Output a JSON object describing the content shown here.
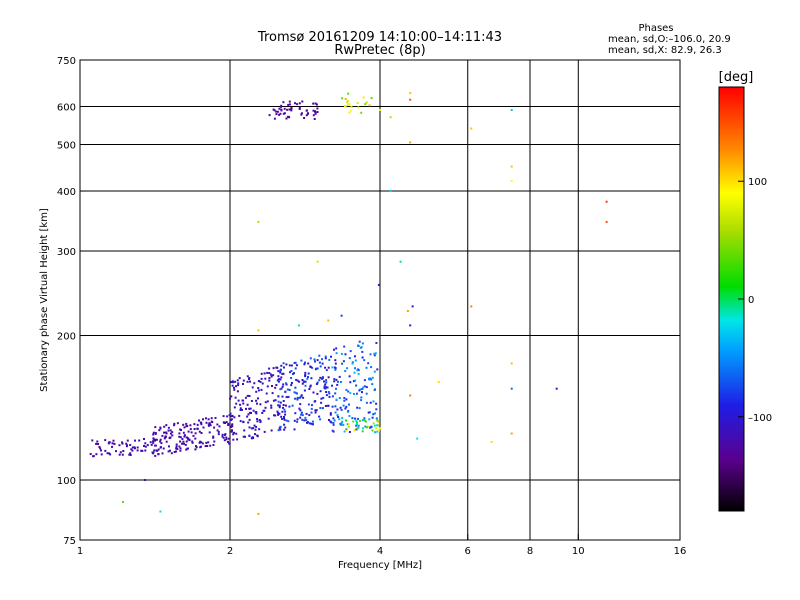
{
  "chart_data": {
    "type": "scatter",
    "title": "Tromsø 20161209 14:10:00–14:11:43",
    "subtitle": "RwPretec (8p)",
    "xlabel": "Frequency [MHz]",
    "ylabel": "Stationary phase Virtual Height [km]",
    "x_scale": "log",
    "y_scale": "log",
    "xlim": [
      1,
      16
    ],
    "ylim": [
      75,
      750
    ],
    "x_ticks": [
      1,
      2,
      4,
      6,
      8,
      10,
      16
    ],
    "x_tick_labels": [
      "1",
      "2",
      "4",
      "6",
      "8",
      "10",
      "16"
    ],
    "y_ticks": [
      75,
      100,
      200,
      300,
      400,
      500,
      600,
      750
    ],
    "y_tick_labels": [
      "75",
      "100",
      "200",
      "300",
      "400",
      "500",
      "600",
      "750"
    ],
    "x_grid": [
      2,
      4,
      6,
      8,
      10
    ],
    "y_grid": [
      100,
      200,
      300,
      400,
      500,
      600
    ],
    "stats": {
      "heading": "Phases",
      "line_o": "mean, sd,O:–106.0, 20.9",
      "line_x": "mean, sd,X:  82.9, 26.3"
    },
    "colorbar": {
      "unit": "[deg]",
      "range": [
        -180,
        180
      ],
      "ticks": [
        100,
        0,
        -100
      ],
      "tick_labels": [
        "100",
        "0",
        "–100"
      ]
    },
    "clusters": [
      {
        "f": [
          1.05,
          1.45
        ],
        "h": [
          112,
          122
        ],
        "phase": [
          -130,
          -112
        ],
        "n": 70,
        "trend": 0
      },
      {
        "f": [
          1.4,
          2.05
        ],
        "h": [
          112,
          138
        ],
        "phase": [
          -130,
          -110
        ],
        "n": 180,
        "trend": 0.6
      },
      {
        "f": [
          2.0,
          2.6
        ],
        "h": [
          118,
          175
        ],
        "phase": [
          -128,
          -95
        ],
        "n": 170,
        "trend": 0.4
      },
      {
        "f": [
          2.5,
          3.3
        ],
        "h": [
          125,
          185
        ],
        "phase": [
          -120,
          -60
        ],
        "n": 190,
        "trend": 0.3
      },
      {
        "f": [
          3.2,
          3.95
        ],
        "h": [
          125,
          195
        ],
        "phase": [
          -100,
          -30
        ],
        "n": 140,
        "trend": 0
      },
      {
        "f": [
          3.4,
          4.0
        ],
        "h": [
          126,
          134
        ],
        "phase": [
          -40,
          120
        ],
        "n": 30,
        "trend": 0
      },
      {
        "f": [
          2.4,
          3.0
        ],
        "h": [
          565,
          615
        ],
        "phase": [
          -140,
          -115
        ],
        "n": 55,
        "trend": 0
      },
      {
        "f": [
          3.3,
          3.9
        ],
        "h": [
          580,
          640
        ],
        "phase": [
          30,
          120
        ],
        "n": 20,
        "trend": 0
      }
    ],
    "points": [
      {
        "f": 1.22,
        "h": 90,
        "phase": 40
      },
      {
        "f": 1.45,
        "h": 86,
        "phase": -20
      },
      {
        "f": 1.35,
        "h": 100,
        "phase": -120
      },
      {
        "f": 2.28,
        "h": 85,
        "phase": 120
      },
      {
        "f": 2.28,
        "h": 345,
        "phase": 60
      },
      {
        "f": 2.28,
        "h": 205,
        "phase": 110
      },
      {
        "f": 2.75,
        "h": 210,
        "phase": -10
      },
      {
        "f": 3.0,
        "h": 285,
        "phase": 70
      },
      {
        "f": 3.15,
        "h": 215,
        "phase": 110
      },
      {
        "f": 3.35,
        "h": 220,
        "phase": -80
      },
      {
        "f": 3.95,
        "h": 170,
        "phase": -100
      },
      {
        "f": 3.98,
        "h": 255,
        "phase": -105
      },
      {
        "f": 4.2,
        "h": 400,
        "phase": -20
      },
      {
        "f": 4.4,
        "h": 285,
        "phase": -10
      },
      {
        "f": 4.55,
        "h": 225,
        "phase": 120
      },
      {
        "f": 4.65,
        "h": 230,
        "phase": -100
      },
      {
        "f": 4.6,
        "h": 210,
        "phase": -100
      },
      {
        "f": 4.6,
        "h": 150,
        "phase": 130
      },
      {
        "f": 4.75,
        "h": 122,
        "phase": -20
      },
      {
        "f": 4.6,
        "h": 505,
        "phase": 120
      },
      {
        "f": 4.6,
        "h": 640,
        "phase": 110
      },
      {
        "f": 4.6,
        "h": 620,
        "phase": 150
      },
      {
        "f": 4.2,
        "h": 570,
        "phase": 60
      },
      {
        "f": 4.0,
        "h": 590,
        "phase": 80
      },
      {
        "f": 5.25,
        "h": 160,
        "phase": 100
      },
      {
        "f": 6.1,
        "h": 540,
        "phase": 110
      },
      {
        "f": 6.1,
        "h": 230,
        "phase": 130
      },
      {
        "f": 6.7,
        "h": 120,
        "phase": 100
      },
      {
        "f": 7.35,
        "h": 590,
        "phase": -30
      },
      {
        "f": 7.35,
        "h": 450,
        "phase": 110
      },
      {
        "f": 7.35,
        "h": 420,
        "phase": 90
      },
      {
        "f": 7.35,
        "h": 175,
        "phase": 110
      },
      {
        "f": 7.35,
        "h": 155,
        "phase": -60
      },
      {
        "f": 7.35,
        "h": 125,
        "phase": 120
      },
      {
        "f": 9.05,
        "h": 155,
        "phase": -100
      },
      {
        "f": 11.4,
        "h": 380,
        "phase": 160
      },
      {
        "f": 11.4,
        "h": 345,
        "phase": 150
      }
    ]
  }
}
